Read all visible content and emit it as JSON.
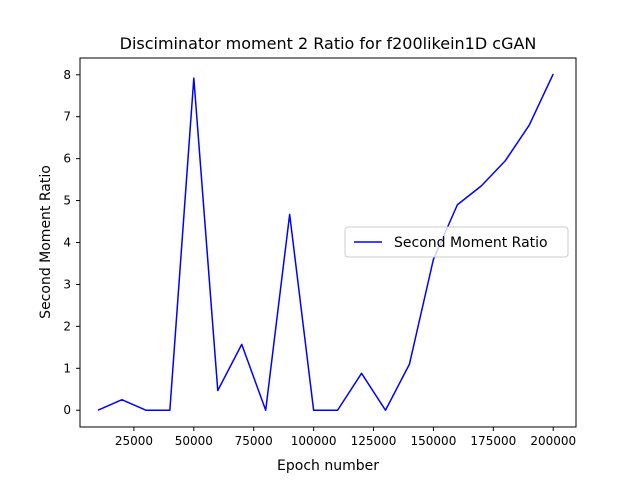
{
  "chart_data": {
    "type": "line",
    "title": "Disciminator moment 2 Ratio for f200likein1D cGAN",
    "xlabel": "Epoch number",
    "ylabel": "Second Moment Ratio",
    "xlim": [
      2500,
      209500
    ],
    "ylim": [
      -0.4,
      8.4
    ],
    "xticks": [
      25000,
      50000,
      75000,
      100000,
      125000,
      150000,
      175000,
      200000
    ],
    "yticks": [
      0,
      1,
      2,
      3,
      4,
      5,
      6,
      7,
      8
    ],
    "grid": false,
    "legend_position": "center-right",
    "series": [
      {
        "name": "Second Moment Ratio",
        "color": "#0000ff",
        "x": [
          10000,
          20000,
          30000,
          40000,
          50000,
          60000,
          70000,
          80000,
          90000,
          100000,
          110000,
          120000,
          130000,
          140000,
          150000,
          160000,
          170000,
          180000,
          190000,
          200000
        ],
        "y": [
          0.0,
          0.25,
          0.0,
          0.0,
          7.92,
          0.47,
          1.57,
          0.0,
          4.67,
          0.0,
          0.0,
          0.88,
          0.0,
          1.1,
          3.6,
          4.9,
          5.35,
          5.95,
          6.8,
          8.02
        ]
      }
    ]
  }
}
